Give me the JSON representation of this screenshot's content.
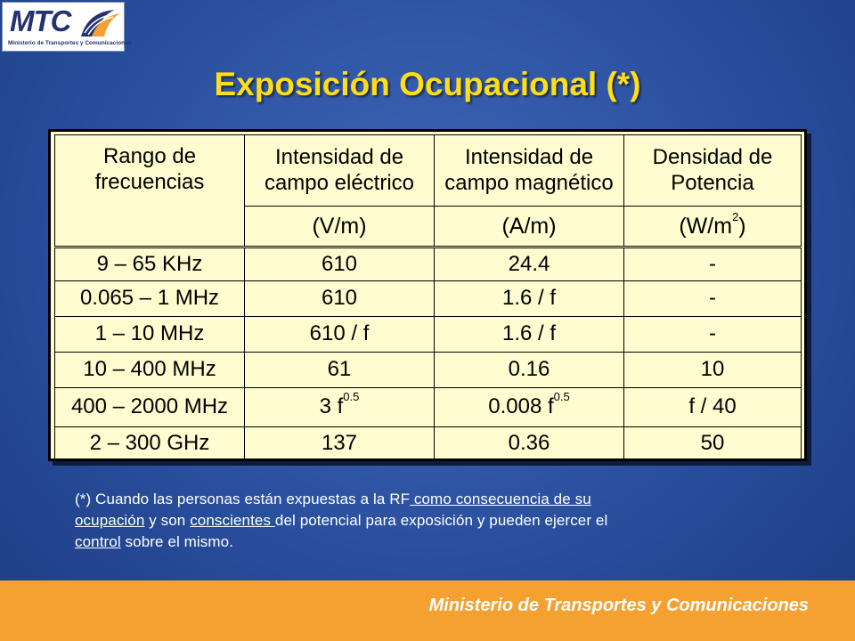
{
  "logo": {
    "text": "MTC",
    "subtitle": "Ministerio de Transportes y Comunicaciones"
  },
  "title": "Exposición Ocupacional (*)",
  "table": {
    "headers": [
      {
        "line1": "Rango de",
        "line2": "frecuencias"
      },
      {
        "line1": "Intensidad de",
        "line2": "campo eléctrico"
      },
      {
        "line1": "Intensidad de",
        "line2": "campo magnético"
      },
      {
        "line1": "Densidad de",
        "line2": "Potencia"
      }
    ],
    "units": {
      "electric": "(V/m)",
      "magnetic": "(A/m)",
      "density_base": "(W/m",
      "density_exp": "2",
      "density_close": ")"
    },
    "rows": [
      {
        "range": "9 – 65 KHz",
        "e": "610",
        "h": "24.4",
        "s": "-"
      },
      {
        "range": "0.065 – 1 MHz",
        "e": "610",
        "h": "1.6 / f",
        "s": "-"
      },
      {
        "range": "1 – 10 MHz",
        "e": "610 / f",
        "h": "1.6 / f",
        "s": "-"
      },
      {
        "range": "10 – 400 MHz",
        "e": "61",
        "h": "0.16",
        "s": "10"
      },
      {
        "range": "400 – 2000 MHz",
        "e_base": "3 f",
        "e_exp": "0.5",
        "h_base": "0.008 f",
        "h_exp": "0.5",
        "s": "f / 40"
      },
      {
        "range": "2 – 300 GHz",
        "e": "137",
        "h": "0.36",
        "s": "50"
      }
    ]
  },
  "note": {
    "p1": "(*) Cuando las personas están expuestas a la RF",
    "u1": " como consecuencia de su",
    "u2": "ocupación",
    "p2": " y  son ",
    "u3": "conscientes ",
    "p3": "del potencial para exposición y pueden ejercer el",
    "u4": "control",
    "p4": " sobre el mismo."
  },
  "footer": {
    "text": "Ministerio de Transportes y Comunicaciones",
    "color": "#f5a132"
  },
  "colors": {
    "title": "#ffde17",
    "table_bg": "#fffdd0",
    "background": "#2a4f9e"
  }
}
